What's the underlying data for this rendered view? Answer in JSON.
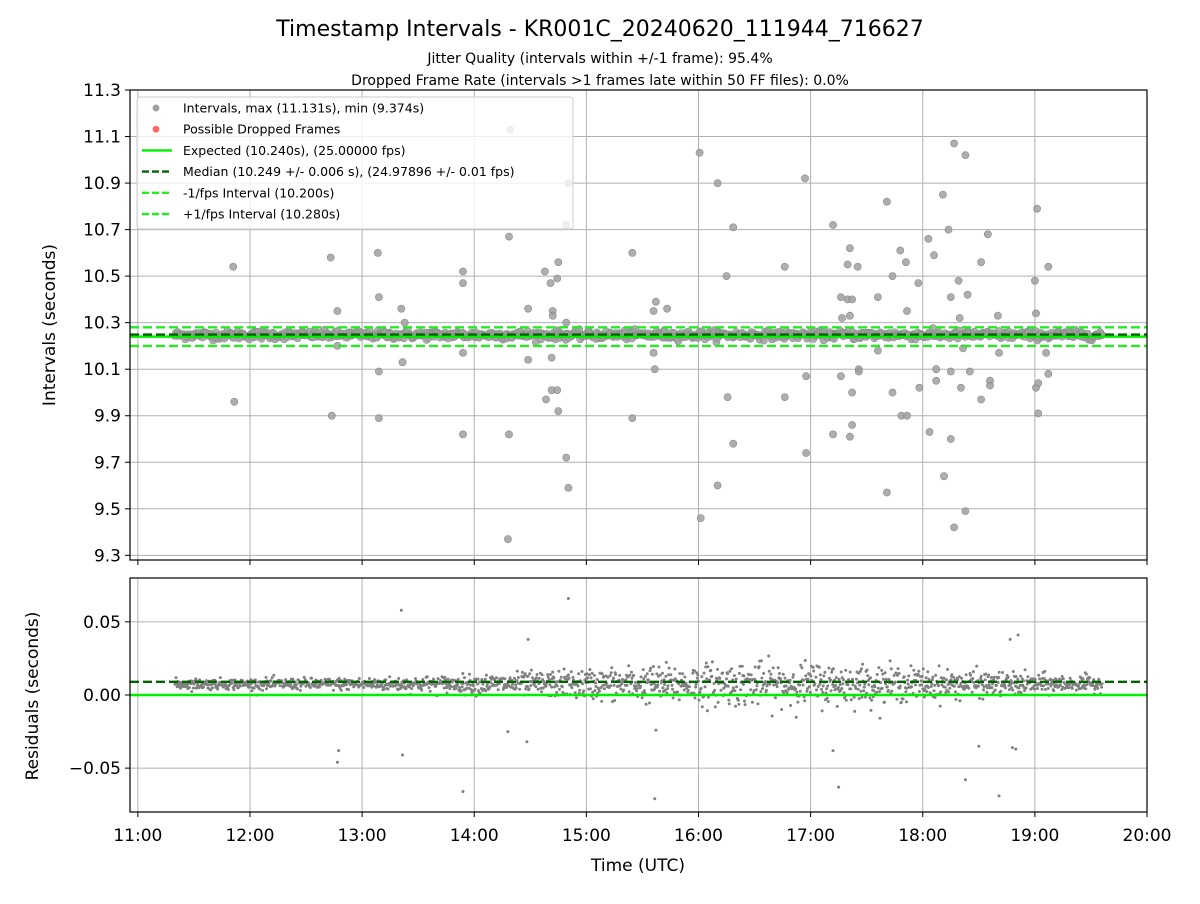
{
  "chart_data": {
    "title": "Timestamp Intervals - KR001C_20240620_111944_716627",
    "subtitle_lines": [
      "Jitter Quality (intervals within +/-1 frame): 95.4%",
      "Dropped Frame Rate (intervals >1 frames late within 50 FF files): 0.0%"
    ],
    "xlabel": "Time (UTC)",
    "x_tick_labels": [
      "11:00",
      "12:00",
      "13:00",
      "14:00",
      "15:00",
      "16:00",
      "17:00",
      "18:00",
      "19:00",
      "20:00"
    ],
    "xlim_hours": [
      10.93,
      20.0
    ],
    "colors": {
      "points": "#808080",
      "dropped": "#ff6666",
      "expected": "#00ee00",
      "median": "#006400",
      "band": "#22ee22",
      "grid": "#b0b0b0"
    },
    "panels": [
      {
        "type": "scatter",
        "ylabel": "Intervals (seconds)",
        "ylim": [
          9.28,
          11.3
        ],
        "y_ticks": [
          9.3,
          9.5,
          9.7,
          9.9,
          10.1,
          10.3,
          10.5,
          10.7,
          10.9,
          11.1,
          11.3
        ],
        "y_tick_labels": [
          "9.3",
          "9.5",
          "9.7",
          "9.9",
          "10.1",
          "10.3",
          "10.5",
          "10.7",
          "10.9",
          "11.1",
          "11.3"
        ],
        "grid": true,
        "legend_position": "top-left",
        "legend": [
          {
            "label": "Intervals, max (11.131s), min (9.374s)",
            "kind": "point",
            "color": "#a0a0a0"
          },
          {
            "label": "Possible Dropped Frames",
            "kind": "point",
            "color": "#ff6666"
          },
          {
            "label": "Expected (10.240s), (25.00000 fps)",
            "kind": "line",
            "color": "#00ee00",
            "dash": false
          },
          {
            "label": "Median (10.249 +/- 0.006 s), (24.97896 +/- 0.01 fps)",
            "kind": "line",
            "color": "#006400",
            "dash": true
          },
          {
            "label": "-1/fps Interval (10.200s)",
            "kind": "line",
            "color": "#22ee22",
            "dash": true
          },
          {
            "label": "+1/fps Interval (10.280s)",
            "kind": "line",
            "color": "#22ee22",
            "dash": true
          }
        ],
        "hlines": [
          {
            "name": "expected",
            "y": 10.24,
            "color": "#00ee00",
            "dash": false
          },
          {
            "name": "median",
            "y": 10.249,
            "color": "#006400",
            "dash": true
          },
          {
            "name": "minus-1-fps",
            "y": 10.2,
            "color": "#22ee22",
            "dash": true
          },
          {
            "name": "plus-1-fps",
            "y": 10.28,
            "color": "#22ee22",
            "dash": true
          }
        ],
        "series_range_hours": [
          11.33,
          19.6
        ],
        "baseline_y": 10.247,
        "baseline_spread": 0.018,
        "outliers": [
          [
            11.85,
            10.54
          ],
          [
            11.86,
            9.96
          ],
          [
            12.72,
            10.58
          ],
          [
            12.73,
            9.9
          ],
          [
            12.78,
            10.35
          ],
          [
            12.78,
            10.2
          ],
          [
            13.14,
            10.6
          ],
          [
            13.15,
            10.41
          ],
          [
            13.15,
            10.09
          ],
          [
            13.15,
            9.89
          ],
          [
            13.35,
            10.36
          ],
          [
            13.36,
            10.13
          ],
          [
            13.38,
            10.3
          ],
          [
            13.9,
            10.52
          ],
          [
            13.9,
            10.47
          ],
          [
            13.9,
            10.17
          ],
          [
            13.9,
            9.82
          ],
          [
            14.32,
            11.13
          ],
          [
            14.31,
            10.67
          ],
          [
            14.31,
            9.82
          ],
          [
            14.3,
            9.37
          ],
          [
            14.48,
            10.36
          ],
          [
            14.48,
            10.14
          ],
          [
            14.63,
            10.52
          ],
          [
            14.64,
            9.97
          ],
          [
            14.68,
            10.47
          ],
          [
            14.69,
            10.15
          ],
          [
            14.69,
            10.01
          ],
          [
            14.7,
            10.35
          ],
          [
            14.7,
            10.33
          ],
          [
            14.74,
            10.49
          ],
          [
            14.74,
            10.01
          ],
          [
            14.75,
            10.56
          ],
          [
            14.75,
            9.92
          ],
          [
            14.82,
            10.72
          ],
          [
            14.82,
            10.3
          ],
          [
            14.82,
            9.72
          ],
          [
            14.84,
            10.9
          ],
          [
            14.84,
            9.59
          ],
          [
            15.41,
            10.6
          ],
          [
            15.41,
            9.89
          ],
          [
            15.6,
            10.35
          ],
          [
            15.6,
            10.17
          ],
          [
            15.61,
            10.1
          ],
          [
            15.62,
            10.39
          ],
          [
            15.72,
            10.36
          ],
          [
            16.01,
            11.03
          ],
          [
            16.02,
            9.46
          ],
          [
            16.17,
            10.9
          ],
          [
            16.17,
            9.6
          ],
          [
            16.25,
            10.5
          ],
          [
            16.26,
            9.98
          ],
          [
            16.31,
            10.71
          ],
          [
            16.31,
            9.78
          ],
          [
            16.77,
            10.54
          ],
          [
            16.77,
            9.98
          ],
          [
            16.95,
            10.92
          ],
          [
            16.96,
            10.07
          ],
          [
            16.96,
            9.74
          ],
          [
            17.2,
            10.72
          ],
          [
            17.2,
            9.82
          ],
          [
            17.27,
            10.41
          ],
          [
            17.28,
            10.32
          ],
          [
            17.27,
            10.07
          ],
          [
            17.33,
            10.55
          ],
          [
            17.33,
            10.4
          ],
          [
            17.35,
            10.62
          ],
          [
            17.35,
            10.33
          ],
          [
            17.35,
            9.81
          ],
          [
            17.37,
            10.4
          ],
          [
            17.37,
            10.0
          ],
          [
            17.37,
            9.86
          ],
          [
            17.42,
            10.54
          ],
          [
            17.43,
            10.1
          ],
          [
            17.43,
            10.09
          ],
          [
            17.6,
            10.41
          ],
          [
            17.6,
            10.18
          ],
          [
            17.68,
            10.82
          ],
          [
            17.68,
            9.57
          ],
          [
            17.73,
            10.5
          ],
          [
            17.73,
            10.0
          ],
          [
            17.8,
            10.61
          ],
          [
            17.81,
            9.9
          ],
          [
            17.85,
            10.56
          ],
          [
            17.86,
            10.35
          ],
          [
            17.86,
            9.9
          ],
          [
            17.96,
            10.47
          ],
          [
            17.97,
            10.02
          ],
          [
            18.05,
            10.66
          ],
          [
            18.06,
            9.83
          ],
          [
            18.1,
            10.59
          ],
          [
            18.12,
            10.1
          ],
          [
            18.12,
            10.05
          ],
          [
            18.18,
            10.85
          ],
          [
            18.19,
            9.64
          ],
          [
            18.23,
            10.7
          ],
          [
            18.25,
            10.41
          ],
          [
            18.25,
            10.09
          ],
          [
            18.25,
            9.8
          ],
          [
            18.28,
            11.07
          ],
          [
            18.28,
            9.42
          ],
          [
            18.32,
            10.48
          ],
          [
            18.33,
            10.32
          ],
          [
            18.34,
            10.02
          ],
          [
            18.36,
            10.19
          ],
          [
            18.38,
            11.02
          ],
          [
            18.38,
            9.49
          ],
          [
            18.4,
            10.42
          ],
          [
            18.42,
            10.09
          ],
          [
            18.52,
            10.56
          ],
          [
            18.52,
            9.97
          ],
          [
            18.58,
            10.68
          ],
          [
            18.6,
            10.05
          ],
          [
            18.6,
            10.03
          ],
          [
            18.67,
            10.33
          ],
          [
            18.68,
            10.17
          ],
          [
            19.0,
            10.48
          ],
          [
            19.01,
            10.34
          ],
          [
            19.01,
            10.02
          ],
          [
            19.02,
            10.79
          ],
          [
            19.03,
            10.04
          ],
          [
            19.03,
            9.91
          ],
          [
            19.1,
            10.17
          ],
          [
            19.12,
            10.54
          ],
          [
            19.12,
            10.08
          ]
        ]
      },
      {
        "type": "scatter",
        "ylabel": "Residuals (seconds)",
        "ylim": [
          -0.08,
          0.08
        ],
        "y_ticks": [
          -0.05,
          0.0,
          0.05
        ],
        "y_tick_labels": [
          "−0.05",
          "0.00",
          "0.05"
        ],
        "grid": true,
        "hlines": [
          {
            "name": "residual-zero",
            "y": 0.0,
            "color": "#00ee00",
            "dash": false
          },
          {
            "name": "residual-median",
            "y": 0.009,
            "color": "#006400",
            "dash": true
          }
        ],
        "series_range_hours": [
          11.33,
          19.6
        ],
        "outliers": [
          [
            12.78,
            -0.046
          ],
          [
            12.79,
            -0.038
          ],
          [
            13.35,
            0.058
          ],
          [
            13.36,
            -0.041
          ],
          [
            13.9,
            -0.066
          ],
          [
            14.3,
            -0.025
          ],
          [
            14.47,
            -0.032
          ],
          [
            14.48,
            0.038
          ],
          [
            14.84,
            0.066
          ],
          [
            15.61,
            -0.071
          ],
          [
            15.62,
            -0.024
          ],
          [
            17.2,
            -0.038
          ],
          [
            17.25,
            -0.063
          ],
          [
            18.38,
            -0.058
          ],
          [
            18.5,
            -0.035
          ],
          [
            18.68,
            -0.069
          ],
          [
            18.8,
            -0.036
          ],
          [
            18.83,
            -0.037
          ],
          [
            18.78,
            0.038
          ],
          [
            18.85,
            0.041
          ]
        ]
      }
    ]
  }
}
